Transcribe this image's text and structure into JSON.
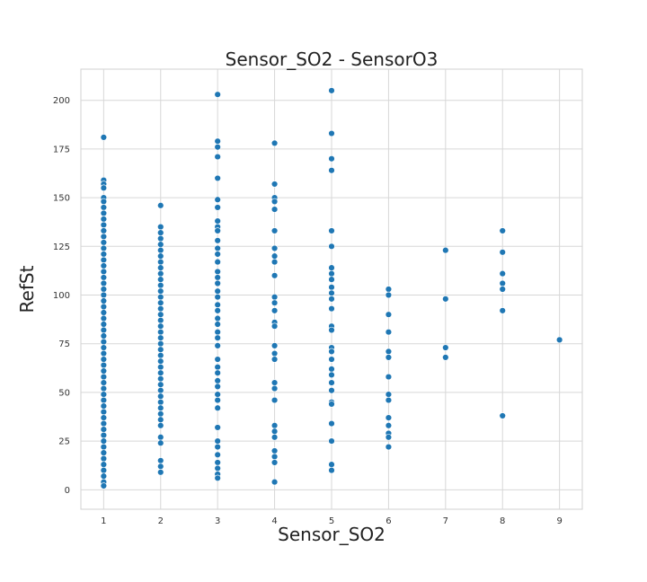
{
  "chart_data": {
    "type": "scatter",
    "title": "Sensor_SO2 - SensorO3",
    "xlabel": "Sensor_SO2",
    "ylabel": "RefSt",
    "xlim": [
      0.6,
      9.4
    ],
    "ylim": [
      -10,
      216
    ],
    "x_ticks": [
      1,
      2,
      3,
      4,
      5,
      6,
      7,
      8,
      9
    ],
    "y_ticks": [
      0,
      25,
      50,
      75,
      100,
      125,
      150,
      175,
      200
    ],
    "grid": true,
    "marker_color": "#1f77b4",
    "points": [
      [
        1,
        181
      ],
      [
        1,
        159
      ],
      [
        1,
        157
      ],
      [
        1,
        155
      ],
      [
        1,
        150
      ],
      [
        1,
        148
      ],
      [
        1,
        145
      ],
      [
        1,
        142
      ],
      [
        1,
        139
      ],
      [
        1,
        136
      ],
      [
        1,
        133
      ],
      [
        1,
        130
      ],
      [
        1,
        127
      ],
      [
        1,
        124
      ],
      [
        1,
        121
      ],
      [
        1,
        118
      ],
      [
        1,
        115
      ],
      [
        1,
        112
      ],
      [
        1,
        109
      ],
      [
        1,
        106
      ],
      [
        1,
        103
      ],
      [
        1,
        100
      ],
      [
        1,
        97
      ],
      [
        1,
        94
      ],
      [
        1,
        91
      ],
      [
        1,
        88
      ],
      [
        1,
        85
      ],
      [
        1,
        82
      ],
      [
        1,
        79
      ],
      [
        1,
        76
      ],
      [
        1,
        73
      ],
      [
        1,
        70
      ],
      [
        1,
        67
      ],
      [
        1,
        64
      ],
      [
        1,
        61
      ],
      [
        1,
        58
      ],
      [
        1,
        55
      ],
      [
        1,
        52
      ],
      [
        1,
        49
      ],
      [
        1,
        46
      ],
      [
        1,
        43
      ],
      [
        1,
        40
      ],
      [
        1,
        37
      ],
      [
        1,
        34
      ],
      [
        1,
        31
      ],
      [
        1,
        28
      ],
      [
        1,
        25
      ],
      [
        1,
        22
      ],
      [
        1,
        19
      ],
      [
        1,
        16
      ],
      [
        1,
        13
      ],
      [
        1,
        10
      ],
      [
        1,
        7
      ],
      [
        1,
        4
      ],
      [
        1,
        2
      ],
      [
        2,
        146
      ],
      [
        2,
        135
      ],
      [
        2,
        132
      ],
      [
        2,
        129
      ],
      [
        2,
        126
      ],
      [
        2,
        123
      ],
      [
        2,
        120
      ],
      [
        2,
        117
      ],
      [
        2,
        114
      ],
      [
        2,
        111
      ],
      [
        2,
        108
      ],
      [
        2,
        105
      ],
      [
        2,
        102
      ],
      [
        2,
        99
      ],
      [
        2,
        96
      ],
      [
        2,
        93
      ],
      [
        2,
        90
      ],
      [
        2,
        87
      ],
      [
        2,
        84
      ],
      [
        2,
        81
      ],
      [
        2,
        78
      ],
      [
        2,
        75
      ],
      [
        2,
        72
      ],
      [
        2,
        69
      ],
      [
        2,
        66
      ],
      [
        2,
        63
      ],
      [
        2,
        60
      ],
      [
        2,
        57
      ],
      [
        2,
        54
      ],
      [
        2,
        51
      ],
      [
        2,
        48
      ],
      [
        2,
        45
      ],
      [
        2,
        42
      ],
      [
        2,
        39
      ],
      [
        2,
        36
      ],
      [
        2,
        33
      ],
      [
        2,
        27
      ],
      [
        2,
        24
      ],
      [
        2,
        15
      ],
      [
        2,
        12
      ],
      [
        2,
        9
      ],
      [
        3,
        203
      ],
      [
        3,
        179
      ],
      [
        3,
        176
      ],
      [
        3,
        171
      ],
      [
        3,
        160
      ],
      [
        3,
        149
      ],
      [
        3,
        145
      ],
      [
        3,
        138
      ],
      [
        3,
        135
      ],
      [
        3,
        133
      ],
      [
        3,
        128
      ],
      [
        3,
        124
      ],
      [
        3,
        121
      ],
      [
        3,
        117
      ],
      [
        3,
        112
      ],
      [
        3,
        109
      ],
      [
        3,
        106
      ],
      [
        3,
        102
      ],
      [
        3,
        99
      ],
      [
        3,
        95
      ],
      [
        3,
        92
      ],
      [
        3,
        88
      ],
      [
        3,
        85
      ],
      [
        3,
        81
      ],
      [
        3,
        78
      ],
      [
        3,
        74
      ],
      [
        3,
        67
      ],
      [
        3,
        63
      ],
      [
        3,
        60
      ],
      [
        3,
        56
      ],
      [
        3,
        53
      ],
      [
        3,
        49
      ],
      [
        3,
        46
      ],
      [
        3,
        42
      ],
      [
        3,
        32
      ],
      [
        3,
        25
      ],
      [
        3,
        22
      ],
      [
        3,
        18
      ],
      [
        3,
        14
      ],
      [
        3,
        11
      ],
      [
        3,
        8
      ],
      [
        3,
        6
      ],
      [
        4,
        178
      ],
      [
        4,
        157
      ],
      [
        4,
        150
      ],
      [
        4,
        148
      ],
      [
        4,
        144
      ],
      [
        4,
        133
      ],
      [
        4,
        124
      ],
      [
        4,
        120
      ],
      [
        4,
        117
      ],
      [
        4,
        110
      ],
      [
        4,
        99
      ],
      [
        4,
        96
      ],
      [
        4,
        92
      ],
      [
        4,
        86
      ],
      [
        4,
        84
      ],
      [
        4,
        74
      ],
      [
        4,
        70
      ],
      [
        4,
        67
      ],
      [
        4,
        55
      ],
      [
        4,
        52
      ],
      [
        4,
        46
      ],
      [
        4,
        33
      ],
      [
        4,
        30
      ],
      [
        4,
        27
      ],
      [
        4,
        20
      ],
      [
        4,
        17
      ],
      [
        4,
        14
      ],
      [
        4,
        4
      ],
      [
        5,
        205
      ],
      [
        5,
        183
      ],
      [
        5,
        170
      ],
      [
        5,
        164
      ],
      [
        5,
        133
      ],
      [
        5,
        125
      ],
      [
        5,
        114
      ],
      [
        5,
        111
      ],
      [
        5,
        108
      ],
      [
        5,
        104
      ],
      [
        5,
        101
      ],
      [
        5,
        98
      ],
      [
        5,
        93
      ],
      [
        5,
        84
      ],
      [
        5,
        82
      ],
      [
        5,
        73
      ],
      [
        5,
        71
      ],
      [
        5,
        67
      ],
      [
        5,
        62
      ],
      [
        5,
        59
      ],
      [
        5,
        55
      ],
      [
        5,
        51
      ],
      [
        5,
        45
      ],
      [
        5,
        44
      ],
      [
        5,
        34
      ],
      [
        5,
        25
      ],
      [
        5,
        13
      ],
      [
        5,
        10
      ],
      [
        6,
        103
      ],
      [
        6,
        100
      ],
      [
        6,
        90
      ],
      [
        6,
        81
      ],
      [
        6,
        71
      ],
      [
        6,
        68
      ],
      [
        6,
        58
      ],
      [
        6,
        49
      ],
      [
        6,
        46
      ],
      [
        6,
        37
      ],
      [
        6,
        33
      ],
      [
        6,
        29
      ],
      [
        6,
        27
      ],
      [
        6,
        22
      ],
      [
        7,
        123
      ],
      [
        7,
        98
      ],
      [
        7,
        73
      ],
      [
        7,
        68
      ],
      [
        8,
        133
      ],
      [
        8,
        122
      ],
      [
        8,
        111
      ],
      [
        8,
        106
      ],
      [
        8,
        103
      ],
      [
        8,
        92
      ],
      [
        8,
        38
      ],
      [
        9,
        77
      ]
    ]
  }
}
